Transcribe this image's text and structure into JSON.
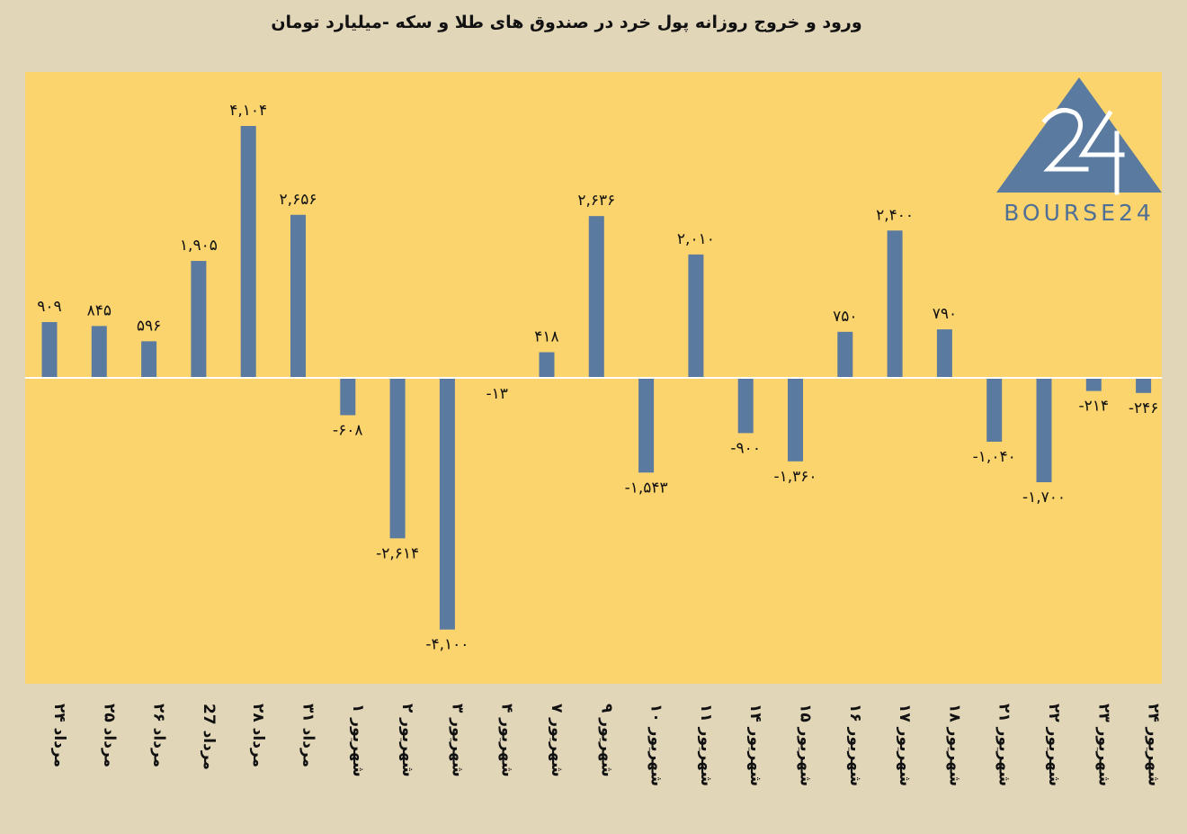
{
  "chart_data": {
    "type": "bar",
    "title": "ورود و خروج روزانه پول خرد در صندوق های طلا و سکه -میلیارد تومان",
    "categories": [
      "۲۴ مرداد",
      "۲۵ مرداد",
      "۲۶ مرداد",
      "27 مرداد",
      "۲۸ مرداد",
      "۳۱ مرداد",
      "۱ شهریور",
      "۲ شهریور",
      "۳ شهریور",
      "۴ شهریور",
      "۷ شهریور",
      "۹ شهریور",
      "۱۰ شهریور",
      "۱۱ شهریور",
      "۱۴ شهریور",
      "۱۵ شهریور",
      "۱۶ شهریور",
      "۱۷ شهریور",
      "۱۸ شهریور",
      "۲۱ شهریور",
      "۲۲ شهریور",
      "۲۳ شهریور",
      "۲۴ شهریور"
    ],
    "values": [
      909,
      845,
      596,
      1905,
      4104,
      2656,
      -608,
      -2614,
      -4100,
      -13,
      418,
      2636,
      -1543,
      2010,
      -900,
      -1360,
      750,
      2400,
      790,
      -1040,
      -1700,
      -214,
      -246
    ],
    "data_labels": [
      "۹۰۹",
      "۸۴۵",
      "۵۹۶",
      "۱,۹۰۵",
      "۴,۱۰۴",
      "۲,۶۵۶",
      "-۶۰۸",
      "-۲,۶۱۴",
      "-۴,۱۰۰",
      "-۱۳",
      "۴۱۸",
      "۲,۶۳۶",
      "-۱,۵۴۳",
      "۲,۰۱۰",
      "-۹۰۰",
      "-۱,۳۶۰",
      "۷۵۰",
      "۲,۴۰۰",
      "۷۹۰",
      "-۱,۰۴۰",
      "-۱,۷۰۰",
      "-۲۱۴",
      "-۲۴۶"
    ],
    "ylim": [
      -4900,
      5000
    ],
    "grid": false,
    "legend": "none",
    "colors": {
      "bar": "#5b7aa0",
      "plot_bg": "#fcd46e",
      "page_bg": "#e2d6b9",
      "zero_line": "#ffffff"
    }
  },
  "logo": {
    "text": "BOURSE24",
    "mark": "24"
  }
}
